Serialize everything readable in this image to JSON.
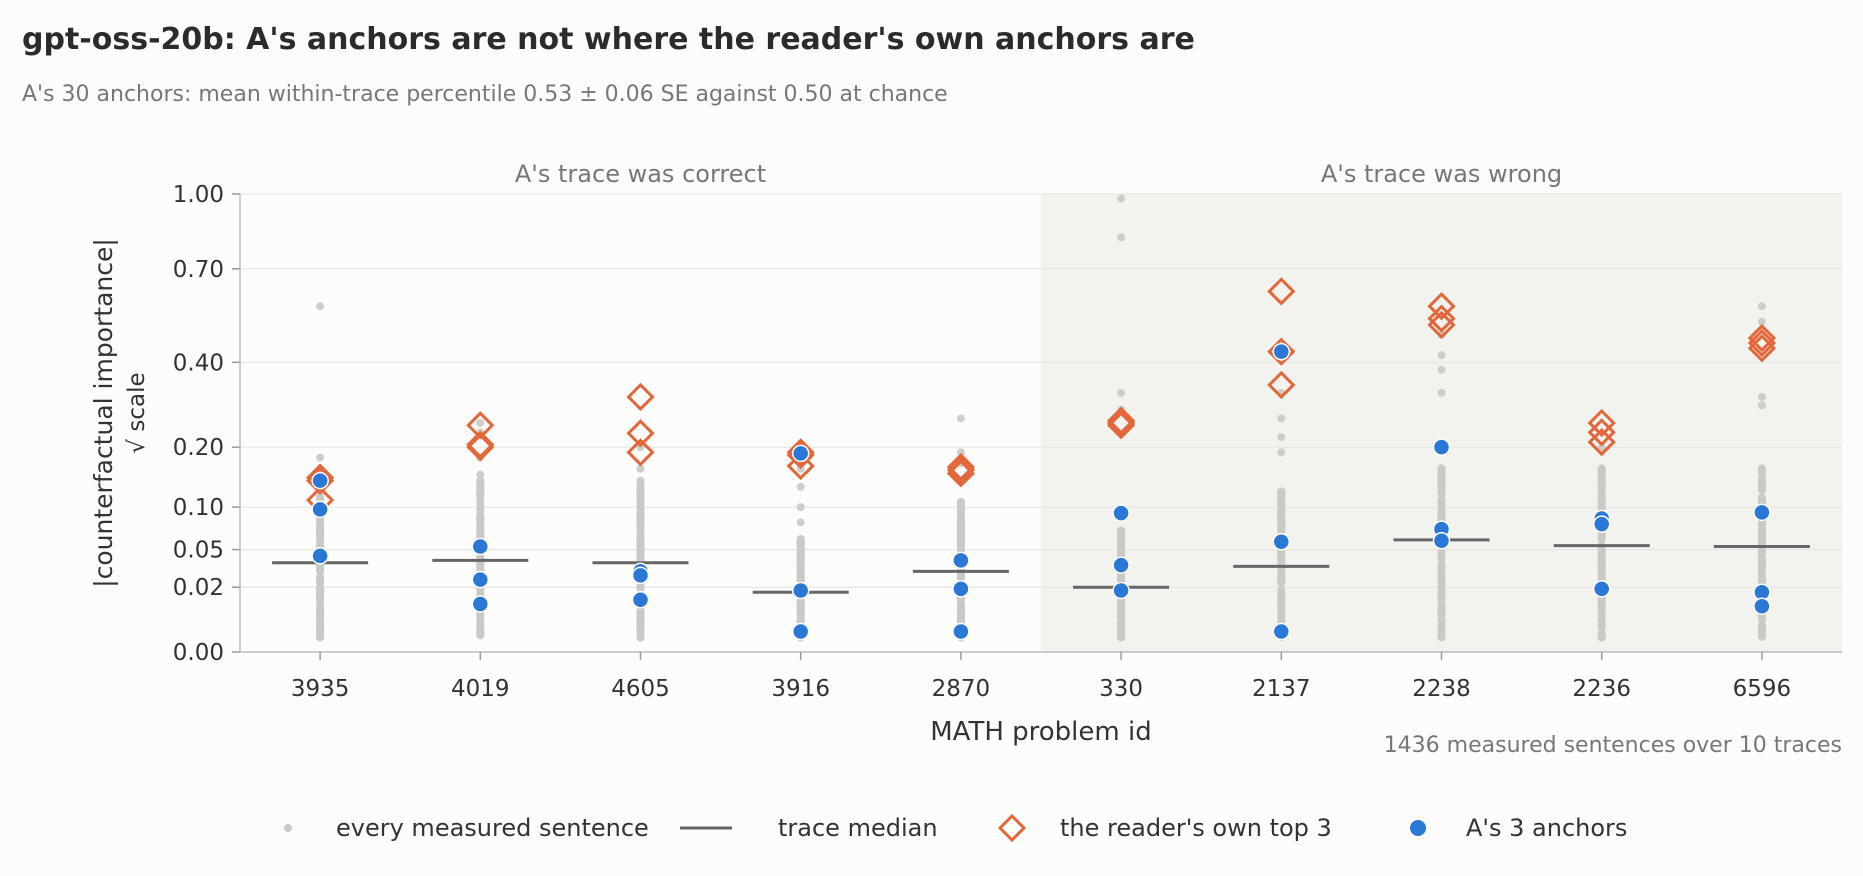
{
  "chart_data": {
    "type": "scatter",
    "title": "gpt-oss-20b: A's anchors are not where the reader's own anchors are",
    "subtitle": "A's 30 anchors: mean within-trace percentile 0.53 ± 0.06 SE against 0.50 at chance",
    "xlabel": "MATH problem id",
    "ylabel": "|counterfactual importance|",
    "ylabel_scale": "√ scale",
    "y_scale": "sqrt",
    "ylim": [
      0,
      1
    ],
    "y_ticks": [
      0.0,
      0.02,
      0.05,
      0.1,
      0.2,
      0.4,
      0.7,
      1.0
    ],
    "y_tick_labels": [
      "0.00",
      "0.02",
      "0.05",
      "0.10",
      "0.20",
      "0.40",
      "0.70",
      "1.00"
    ],
    "grid": true,
    "note": "1436 measured sentences over 10 traces",
    "panels": [
      {
        "label": "A's trace was correct",
        "categories": [
          "3935",
          "4019",
          "4605",
          "3916",
          "2870"
        ],
        "shaded": false
      },
      {
        "label": "A's trace was wrong",
        "categories": [
          "330",
          "2137",
          "2238",
          "2236",
          "6596"
        ],
        "shaded": true
      }
    ],
    "legend": {
      "placement": "bottom",
      "items": [
        {
          "label": "every measured sentence",
          "marker": "small-gray-dot"
        },
        {
          "label": "trace median",
          "marker": "line"
        },
        {
          "label": "the reader's own top 3",
          "marker": "orange-diamond"
        },
        {
          "label": "A's 3 anchors",
          "marker": "blue-dot"
        }
      ]
    },
    "colors": {
      "sentence": "#c9c9c5",
      "median": "#666666",
      "reader_top3": "#e2673a",
      "anchors": "#2a77d6",
      "shade": "#f2f2ee",
      "grid": "#e6e6e2"
    },
    "traces": [
      {
        "id": "3935",
        "median": 0.038,
        "reader_top3": [
          0.145,
          0.14,
          0.11
        ],
        "anchors": [
          0.14,
          0.097,
          0.044
        ],
        "extremes": [
          0.57,
          0.18,
          0.16,
          0.125
        ]
      },
      {
        "id": "4019",
        "median": 0.04,
        "reader_top3": [
          0.245,
          0.205,
          0.2
        ],
        "anchors": [
          0.053,
          0.025,
          0.011
        ],
        "extremes": [
          0.25,
          0.23,
          0.18,
          0.15
        ]
      },
      {
        "id": "4605",
        "median": 0.038,
        "reader_top3": [
          0.31,
          0.228,
          0.19
        ],
        "anchors": [
          0.031,
          0.028,
          0.013
        ],
        "extremes": [
          0.2,
          0.16,
          0.14,
          0.12
        ]
      },
      {
        "id": "3916",
        "median": 0.017,
        "reader_top3": [
          0.19,
          0.185,
          0.165
        ],
        "anchors": [
          0.188,
          0.018,
          0.002
        ],
        "extremes": [
          0.16,
          0.13,
          0.1,
          0.08
        ]
      },
      {
        "id": "2870",
        "median": 0.031,
        "reader_top3": [
          0.163,
          0.158,
          0.152
        ],
        "anchors": [
          0.04,
          0.019,
          0.002
        ],
        "extremes": [
          0.26,
          0.19,
          0.17,
          0.14
        ]
      },
      {
        "id": "330",
        "median": 0.02,
        "reader_top3": [
          0.255,
          0.25,
          0.245
        ],
        "anchors": [
          0.092,
          0.036,
          0.018
        ],
        "extremes": [
          0.98,
          0.82,
          0.32,
          0.28
        ]
      },
      {
        "id": "2137",
        "median": 0.035,
        "reader_top3": [
          0.62,
          0.43,
          0.34
        ],
        "anchors": [
          0.43,
          0.058,
          0.002
        ],
        "extremes": [
          0.32,
          0.26,
          0.22,
          0.19
        ]
      },
      {
        "id": "2238",
        "median": 0.06,
        "reader_top3": [
          0.57,
          0.53,
          0.51
        ],
        "anchors": [
          0.2,
          0.072,
          0.059
        ],
        "extremes": [
          0.48,
          0.42,
          0.38,
          0.32
        ]
      },
      {
        "id": "2236",
        "median": 0.054,
        "reader_top3": [
          0.25,
          0.23,
          0.21
        ],
        "anchors": [
          0.085,
          0.078,
          0.019
        ],
        "extremes": [
          0.2,
          0.16,
          0.14,
          0.12
        ]
      },
      {
        "id": "6596",
        "median": 0.053,
        "reader_top3": [
          0.47,
          0.455,
          0.44
        ],
        "anchors": [
          0.093,
          0.017,
          0.01
        ],
        "extremes": [
          0.57,
          0.52,
          0.31,
          0.29
        ]
      }
    ]
  }
}
